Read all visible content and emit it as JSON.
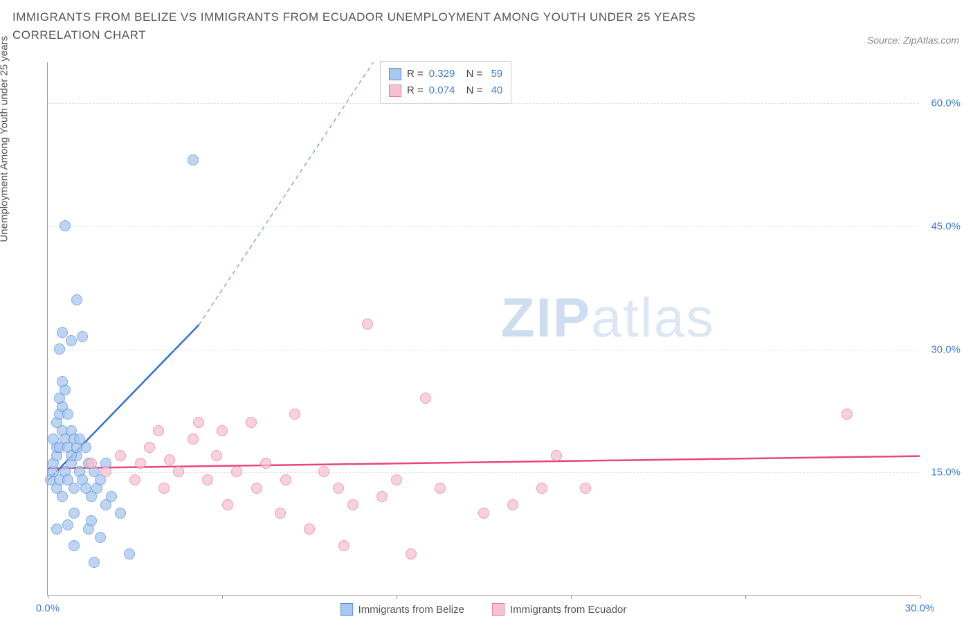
{
  "title": "IMMIGRANTS FROM BELIZE VS IMMIGRANTS FROM ECUADOR UNEMPLOYMENT AMONG YOUTH UNDER 25 YEARS CORRELATION CHART",
  "source": "Source: ZipAtlas.com",
  "y_axis_label": "Unemployment Among Youth under 25 years",
  "watermark_bold": "ZIP",
  "watermark_light": "atlas",
  "chart": {
    "type": "scatter",
    "xlim": [
      0,
      30
    ],
    "ylim": [
      0,
      65
    ],
    "x_ticks": [
      0,
      6,
      12,
      18,
      24,
      30
    ],
    "x_tick_labels": [
      "0.0%",
      "",
      "",
      "",
      "",
      "30.0%"
    ],
    "y_ticks": [
      15,
      30,
      45,
      60
    ],
    "y_tick_labels": [
      "15.0%",
      "30.0%",
      "45.0%",
      "60.0%"
    ],
    "background_color": "#ffffff",
    "grid_color": "#e0e0e0",
    "point_radius": 8,
    "series": [
      {
        "name": "Immigrants from Belize",
        "color_fill": "#a8c8f0",
        "color_stroke": "#5b8fd6",
        "r_value": "0.329",
        "n_value": "59",
        "trend_line": {
          "x1": 0,
          "y1": 14,
          "x2": 5.2,
          "y2": 33,
          "dash_x2": 11.2,
          "dash_y2": 65,
          "color": "#2e6fd1"
        },
        "points": [
          [
            0.1,
            14
          ],
          [
            0.2,
            15
          ],
          [
            0.3,
            13
          ],
          [
            0.2,
            16
          ],
          [
            0.4,
            14
          ],
          [
            0.3,
            17
          ],
          [
            0.5,
            12
          ],
          [
            0.3,
            18
          ],
          [
            0.6,
            15
          ],
          [
            0.2,
            19
          ],
          [
            0.4,
            18
          ],
          [
            0.7,
            14
          ],
          [
            0.5,
            20
          ],
          [
            0.8,
            16
          ],
          [
            0.3,
            21
          ],
          [
            0.6,
            19
          ],
          [
            0.9,
            13
          ],
          [
            0.4,
            22
          ],
          [
            1.0,
            17
          ],
          [
            0.5,
            23
          ],
          [
            0.7,
            18
          ],
          [
            1.1,
            15
          ],
          [
            0.4,
            24
          ],
          [
            1.2,
            14
          ],
          [
            0.6,
            25
          ],
          [
            0.8,
            20
          ],
          [
            1.3,
            18
          ],
          [
            0.5,
            26
          ],
          [
            1.4,
            16
          ],
          [
            0.9,
            19
          ],
          [
            1.5,
            12
          ],
          [
            0.7,
            22
          ],
          [
            1.6,
            15
          ],
          [
            0.8,
            17
          ],
          [
            1.7,
            13
          ],
          [
            1.0,
            18
          ],
          [
            1.8,
            14
          ],
          [
            0.9,
            10
          ],
          [
            1.1,
            19
          ],
          [
            2.0,
            11
          ],
          [
            0.4,
            30
          ],
          [
            0.8,
            31
          ],
          [
            1.2,
            31.5
          ],
          [
            0.5,
            32
          ],
          [
            1.0,
            36
          ],
          [
            0.6,
            45
          ],
          [
            0.3,
            8
          ],
          [
            0.7,
            8.5
          ],
          [
            1.4,
            8
          ],
          [
            1.5,
            9
          ],
          [
            1.8,
            7
          ],
          [
            2.2,
            12
          ],
          [
            2.5,
            10
          ],
          [
            2.8,
            5
          ],
          [
            1.3,
            13
          ],
          [
            1.6,
            4
          ],
          [
            0.9,
            6
          ],
          [
            5.0,
            53
          ],
          [
            2.0,
            16
          ]
        ]
      },
      {
        "name": "Immigrants from Ecuador",
        "color_fill": "#f5c2d0",
        "color_stroke": "#e87ba0",
        "r_value": "0.074",
        "n_value": "40",
        "trend_line": {
          "x1": 0,
          "y1": 15.5,
          "x2": 30,
          "y2": 17,
          "color": "#e8457a"
        },
        "points": [
          [
            1.5,
            16
          ],
          [
            2.0,
            15
          ],
          [
            2.5,
            17
          ],
          [
            3.0,
            14
          ],
          [
            3.2,
            16
          ],
          [
            3.5,
            18
          ],
          [
            3.8,
            20
          ],
          [
            4.0,
            13
          ],
          [
            4.2,
            16.5
          ],
          [
            4.5,
            15
          ],
          [
            5.0,
            19
          ],
          [
            5.2,
            21
          ],
          [
            5.5,
            14
          ],
          [
            5.8,
            17
          ],
          [
            6.0,
            20
          ],
          [
            6.2,
            11
          ],
          [
            6.5,
            15
          ],
          [
            7.0,
            21
          ],
          [
            7.2,
            13
          ],
          [
            7.5,
            16
          ],
          [
            8.0,
            10
          ],
          [
            8.2,
            14
          ],
          [
            8.5,
            22
          ],
          [
            9.0,
            8
          ],
          [
            9.5,
            15
          ],
          [
            10.0,
            13
          ],
          [
            10.2,
            6
          ],
          [
            10.5,
            11
          ],
          [
            11.0,
            33
          ],
          [
            11.5,
            12
          ],
          [
            12.0,
            14
          ],
          [
            12.5,
            5
          ],
          [
            13.0,
            24
          ],
          [
            13.5,
            13
          ],
          [
            15.0,
            10
          ],
          [
            16.0,
            11
          ],
          [
            17.5,
            17
          ],
          [
            17.0,
            13
          ],
          [
            18.5,
            13
          ],
          [
            27.5,
            22
          ]
        ]
      }
    ]
  },
  "bottom_legend": [
    {
      "label": "Immigrants from Belize",
      "fill": "#a8c8f0",
      "stroke": "#5b8fd6"
    },
    {
      "label": "Immigrants from Ecuador",
      "fill": "#f5c2d0",
      "stroke": "#e87ba0"
    }
  ]
}
